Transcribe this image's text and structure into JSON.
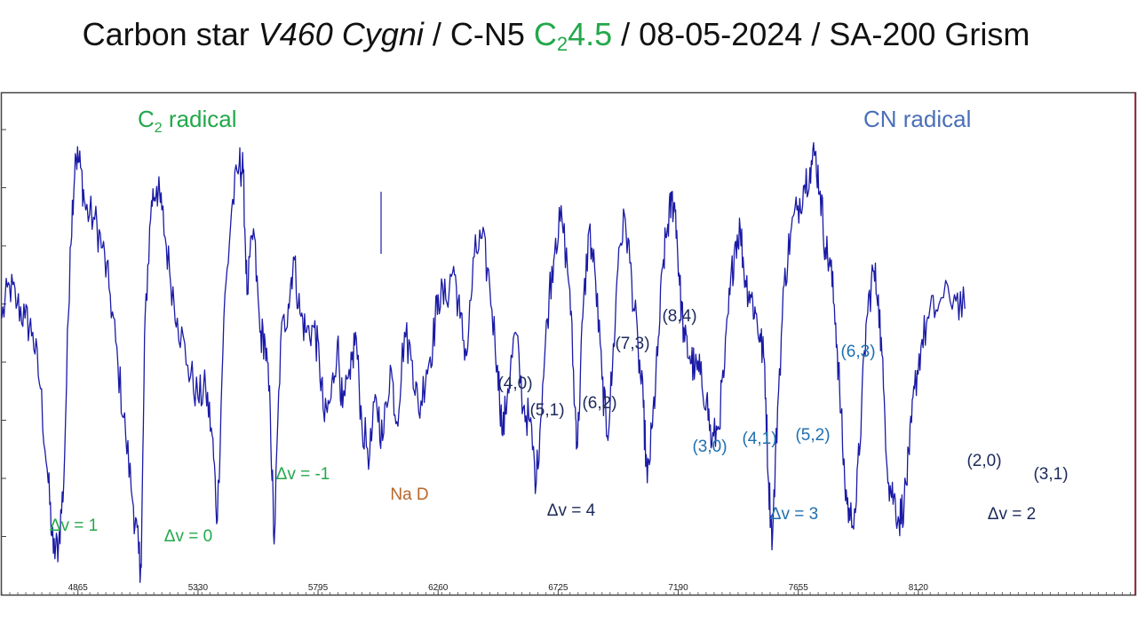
{
  "title": {
    "part1": "Carbon star ",
    "star": "V460 Cygni",
    "part2": "  / C-N5 ",
    "ctype_c": "C",
    "ctype_sub": "2",
    "ctype_num": "4.5",
    "part3": " / 08-05-2024 / SA-200 Grism"
  },
  "colors": {
    "spectrum": "#1a1aa6",
    "c2": "#22a84a",
    "cn": "#4a6fb8",
    "nad": "#b8672a",
    "dark": "#1c2a5a",
    "mid": "#1f6fb0"
  },
  "chart_data": {
    "type": "line",
    "title": "Carbon star V460 Cygni / C-N5 C24.5 / 08-05-2024 / SA-200 Grism",
    "xlabel": "",
    "ylabel": "",
    "xlim": [
      4570,
      8960
    ],
    "ylim": [
      0,
      1
    ],
    "grid": false,
    "x_ticks": [
      4865,
      5330,
      5795,
      6260,
      6725,
      7190,
      7655,
      8120
    ],
    "series": [
      {
        "values": [
          [
            4570,
            0.55
          ],
          [
            4600,
            0.62
          ],
          [
            4630,
            0.58
          ],
          [
            4660,
            0.55
          ],
          [
            4690,
            0.52
          ],
          [
            4720,
            0.4
          ],
          [
            4750,
            0.2
          ],
          [
            4770,
            0.05
          ],
          [
            4790,
            0.07
          ],
          [
            4810,
            0.2
          ],
          [
            4835,
            0.7
          ],
          [
            4855,
            0.9
          ],
          [
            4875,
            0.87
          ],
          [
            4895,
            0.78
          ],
          [
            4930,
            0.76
          ],
          [
            4960,
            0.7
          ],
          [
            4990,
            0.6
          ],
          [
            5020,
            0.45
          ],
          [
            5050,
            0.3
          ],
          [
            5080,
            0.15
          ],
          [
            5100,
            0.05
          ],
          [
            5110,
            0.02
          ],
          [
            5125,
            0.55
          ],
          [
            5150,
            0.8
          ],
          [
            5170,
            0.83
          ],
          [
            5190,
            0.78
          ],
          [
            5220,
            0.65
          ],
          [
            5250,
            0.55
          ],
          [
            5290,
            0.45
          ],
          [
            5330,
            0.38
          ],
          [
            5360,
            0.4
          ],
          [
            5385,
            0.3
          ],
          [
            5405,
            0.12
          ],
          [
            5430,
            0.55
          ],
          [
            5460,
            0.78
          ],
          [
            5490,
            0.88
          ],
          [
            5505,
            0.86
          ],
          [
            5520,
            0.6
          ],
          [
            5545,
            0.74
          ],
          [
            5570,
            0.52
          ],
          [
            5590,
            0.5
          ],
          [
            5610,
            0.35
          ],
          [
            5625,
            0.07
          ],
          [
            5650,
            0.5
          ],
          [
            5680,
            0.58
          ],
          [
            5700,
            0.68
          ],
          [
            5725,
            0.56
          ],
          [
            5750,
            0.52
          ],
          [
            5780,
            0.53
          ],
          [
            5800,
            0.46
          ],
          [
            5820,
            0.33
          ],
          [
            5845,
            0.38
          ],
          [
            5870,
            0.5
          ],
          [
            5890,
            0.36
          ],
          [
            5920,
            0.42
          ],
          [
            5940,
            0.52
          ],
          [
            5965,
            0.32
          ],
          [
            5995,
            0.26
          ],
          [
            6020,
            0.38
          ],
          [
            6045,
            0.29
          ],
          [
            6075,
            0.45
          ],
          [
            6100,
            0.33
          ],
          [
            6130,
            0.52
          ],
          [
            6160,
            0.46
          ],
          [
            6185,
            0.35
          ],
          [
            6215,
            0.44
          ],
          [
            6240,
            0.5
          ],
          [
            6260,
            0.6
          ],
          [
            6290,
            0.59
          ],
          [
            6320,
            0.66
          ],
          [
            6345,
            0.55
          ],
          [
            6370,
            0.47
          ],
          [
            6400,
            0.68
          ],
          [
            6430,
            0.72
          ],
          [
            6460,
            0.62
          ],
          [
            6490,
            0.45
          ],
          [
            6510,
            0.3
          ],
          [
            6530,
            0.4
          ],
          [
            6560,
            0.52
          ],
          [
            6590,
            0.36
          ],
          [
            6615,
            0.33
          ],
          [
            6640,
            0.2
          ],
          [
            6665,
            0.41
          ],
          [
            6690,
            0.6
          ],
          [
            6715,
            0.72
          ],
          [
            6740,
            0.76
          ],
          [
            6770,
            0.61
          ],
          [
            6790,
            0.36
          ],
          [
            6800,
            0.28
          ],
          [
            6820,
            0.55
          ],
          [
            6845,
            0.74
          ],
          [
            6870,
            0.63
          ],
          [
            6895,
            0.42
          ],
          [
            6915,
            0.3
          ],
          [
            6935,
            0.44
          ],
          [
            6960,
            0.7
          ],
          [
            6985,
            0.76
          ],
          [
            7010,
            0.63
          ],
          [
            7035,
            0.48
          ],
          [
            7055,
            0.36
          ],
          [
            7070,
            0.2
          ],
          [
            7090,
            0.32
          ],
          [
            7110,
            0.47
          ],
          [
            7130,
            0.66
          ],
          [
            7150,
            0.75
          ],
          [
            7165,
            0.8
          ],
          [
            7180,
            0.78
          ],
          [
            7195,
            0.62
          ],
          [
            7215,
            0.5
          ],
          [
            7235,
            0.47
          ],
          [
            7255,
            0.44
          ],
          [
            7275,
            0.43
          ],
          [
            7300,
            0.38
          ],
          [
            7320,
            0.28
          ],
          [
            7345,
            0.32
          ],
          [
            7370,
            0.45
          ],
          [
            7390,
            0.6
          ],
          [
            7410,
            0.71
          ],
          [
            7430,
            0.74
          ],
          [
            7450,
            0.63
          ],
          [
            7470,
            0.6
          ],
          [
            7490,
            0.56
          ],
          [
            7510,
            0.5
          ],
          [
            7525,
            0.45
          ],
          [
            7540,
            0.2
          ],
          [
            7555,
            0.08
          ],
          [
            7575,
            0.36
          ],
          [
            7600,
            0.62
          ],
          [
            7625,
            0.73
          ],
          [
            7650,
            0.78
          ],
          [
            7675,
            0.83
          ],
          [
            7700,
            0.87
          ],
          [
            7720,
            0.9
          ],
          [
            7740,
            0.82
          ],
          [
            7760,
            0.7
          ],
          [
            7780,
            0.66
          ],
          [
            7800,
            0.54
          ],
          [
            7815,
            0.4
          ],
          [
            7835,
            0.2
          ],
          [
            7855,
            0.12
          ],
          [
            7880,
            0.16
          ],
          [
            7900,
            0.36
          ],
          [
            7920,
            0.55
          ],
          [
            7945,
            0.65
          ],
          [
            7965,
            0.6
          ],
          [
            7985,
            0.4
          ],
          [
            8005,
            0.2
          ],
          [
            8025,
            0.17
          ],
          [
            8045,
            0.12
          ],
          [
            8065,
            0.16
          ],
          [
            8085,
            0.26
          ],
          [
            8105,
            0.4
          ],
          [
            8130,
            0.49
          ],
          [
            8160,
            0.55
          ],
          [
            8200,
            0.58
          ],
          [
            8260,
            0.6
          ],
          [
            8300,
            0.57
          ]
        ]
      }
    ],
    "annotations": {
      "c2_header": {
        "text": "C",
        "sub": "2",
        "rest": " radical"
      },
      "cn_header": {
        "text": "CN radical"
      },
      "labels": [
        {
          "text": "Δv = 1"
        },
        {
          "text": "Δv = 0"
        },
        {
          "text": "Δv = -1"
        },
        {
          "text": "Na D"
        },
        {
          "text": "(4,0)"
        },
        {
          "text": "(5,1)"
        },
        {
          "text": "(6,2)"
        },
        {
          "text": "(7,3)"
        },
        {
          "text": "(8,4)"
        },
        {
          "text": "Δv = 4"
        },
        {
          "text": "(3,0)"
        },
        {
          "text": "(4,1)"
        },
        {
          "text": "(5,2)"
        },
        {
          "text": "(6,3)"
        },
        {
          "text": "Δv = 3"
        },
        {
          "text": "(2,0)"
        },
        {
          "text": "(3,1)"
        },
        {
          "text": "Δv = 2"
        }
      ]
    }
  }
}
